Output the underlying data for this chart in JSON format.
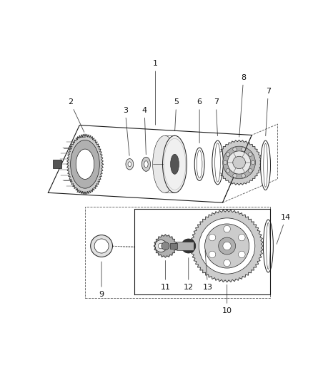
{
  "bg_color": "#ffffff",
  "fig_width": 4.38,
  "fig_height": 5.33,
  "dpi": 100,
  "dark": "#1a1a1a",
  "gray1": "#b0b0b0",
  "gray2": "#cccccc",
  "gray3": "#e0e0e0",
  "label_fs": 8
}
